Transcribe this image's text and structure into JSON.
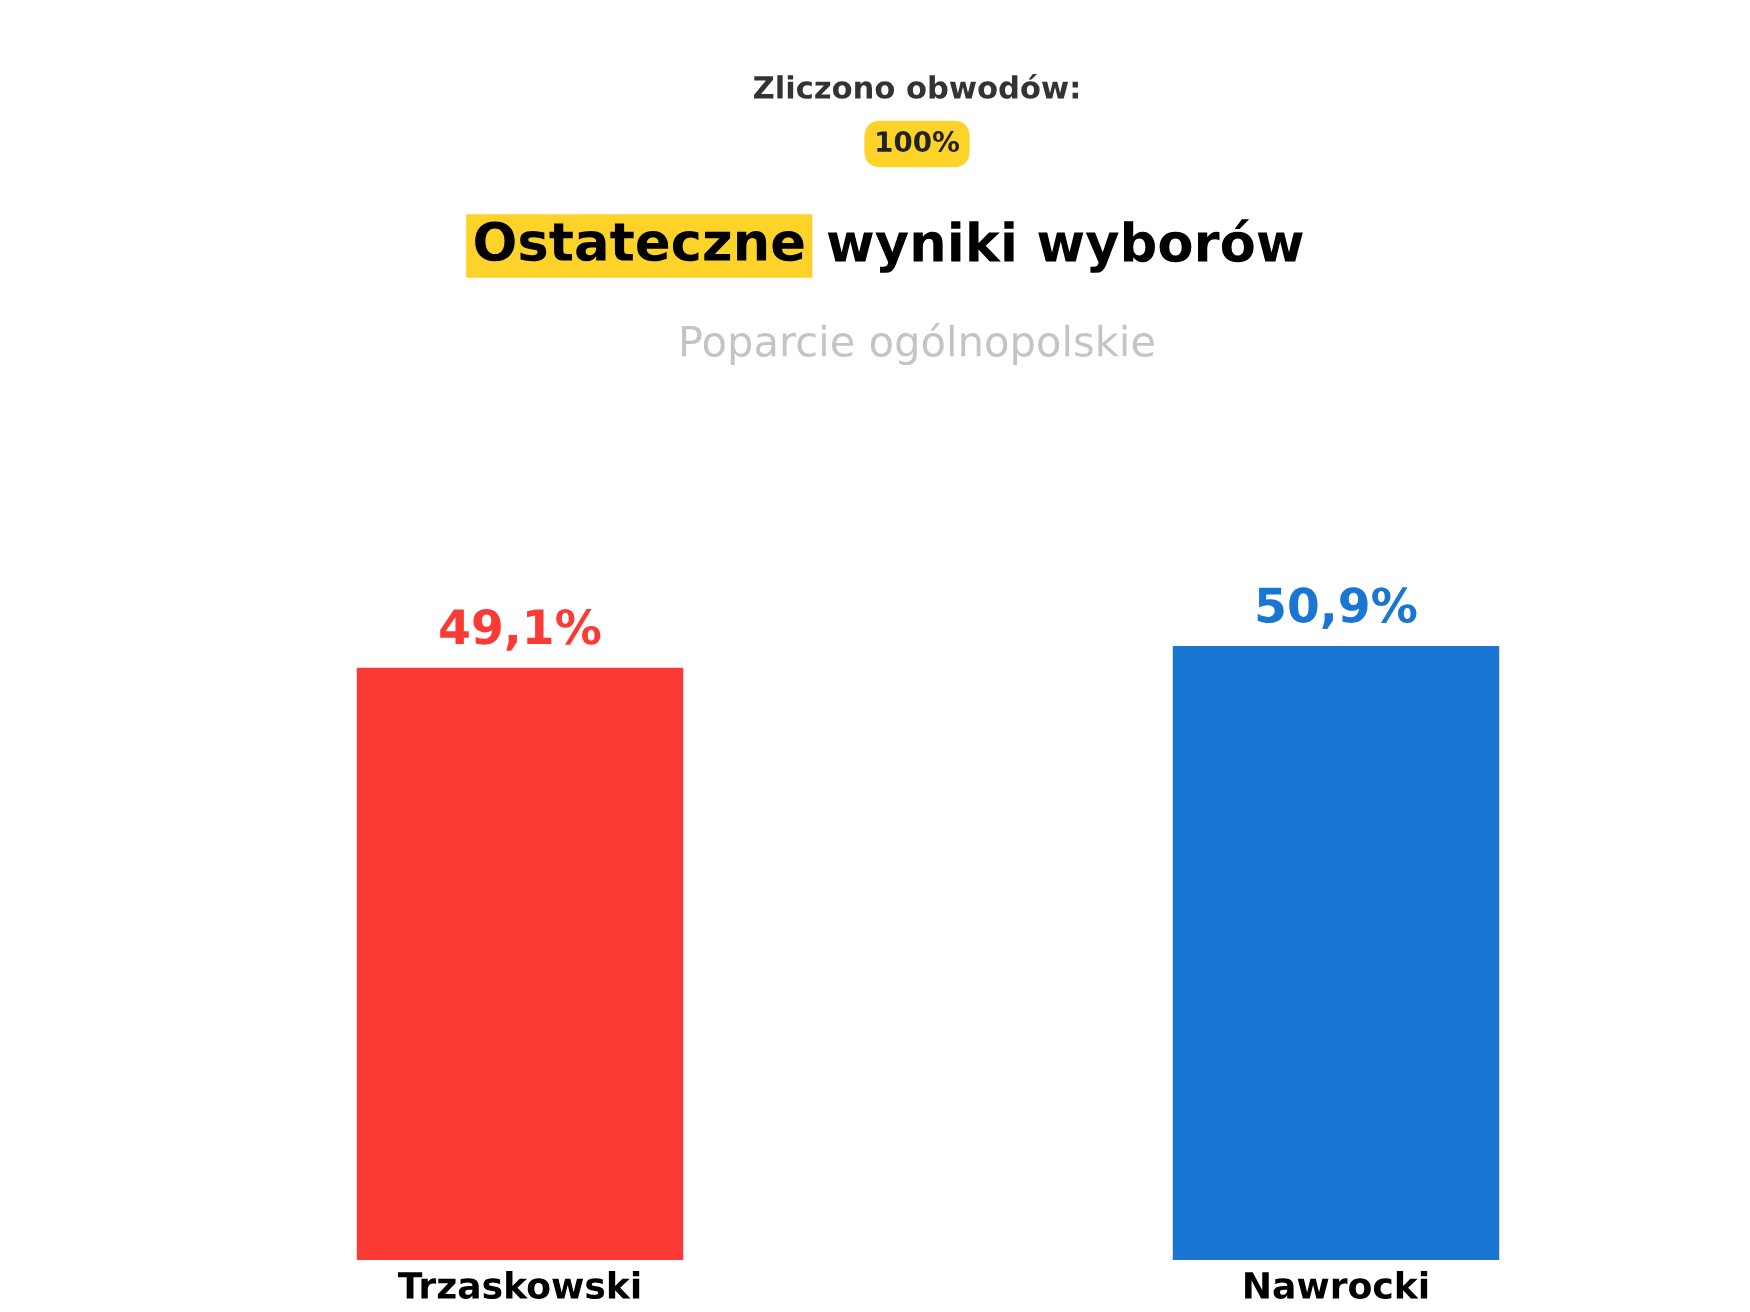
{
  "chart_data": {
    "type": "bar",
    "title": "Ostateczne wyniki wyborów",
    "subtitle": "Poparcie ogólnopolskie",
    "annotations": [
      "Zliczono obwodów:",
      "100%"
    ],
    "categories": [
      "Trzaskowski",
      "Nawrocki"
    ],
    "values": [
      49.1,
      50.9
    ],
    "colors": [
      "#fb3a36",
      "#1976d2"
    ],
    "value_labels": [
      "49,1%",
      "50,9%"
    ]
  }
}
